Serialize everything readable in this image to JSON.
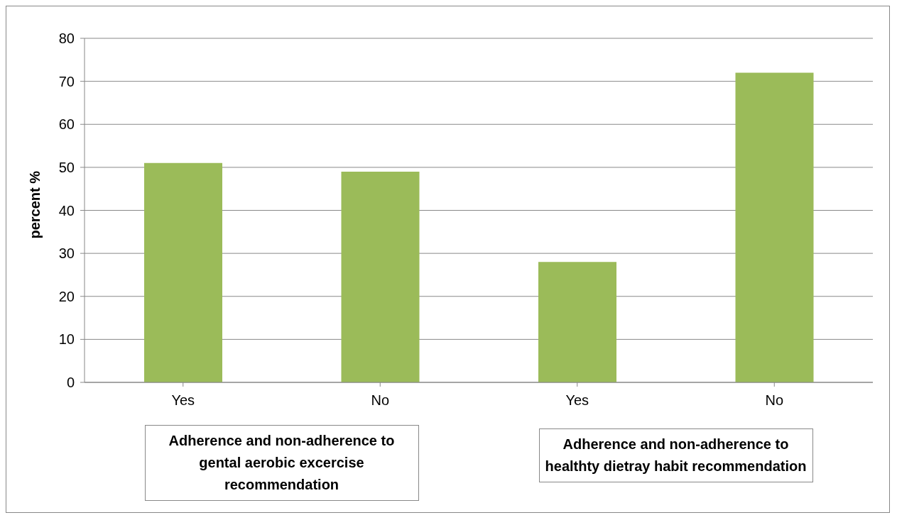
{
  "chart_data": {
    "type": "bar",
    "ylabel": "percent %",
    "categories": [
      "Yes",
      "No",
      "Yes",
      "No"
    ],
    "values": [
      51,
      49,
      28,
      72
    ],
    "color": "#9bbb59",
    "ylim": [
      0,
      80
    ],
    "yticks": [
      0,
      10,
      20,
      30,
      40,
      50,
      60,
      70,
      80
    ],
    "grid": "y",
    "annotations": [
      "Adherence and non-adherence to gental aerobic excercise recommendation",
      "Adherence and non-adherence to healthty dietray habit recommendation"
    ]
  }
}
